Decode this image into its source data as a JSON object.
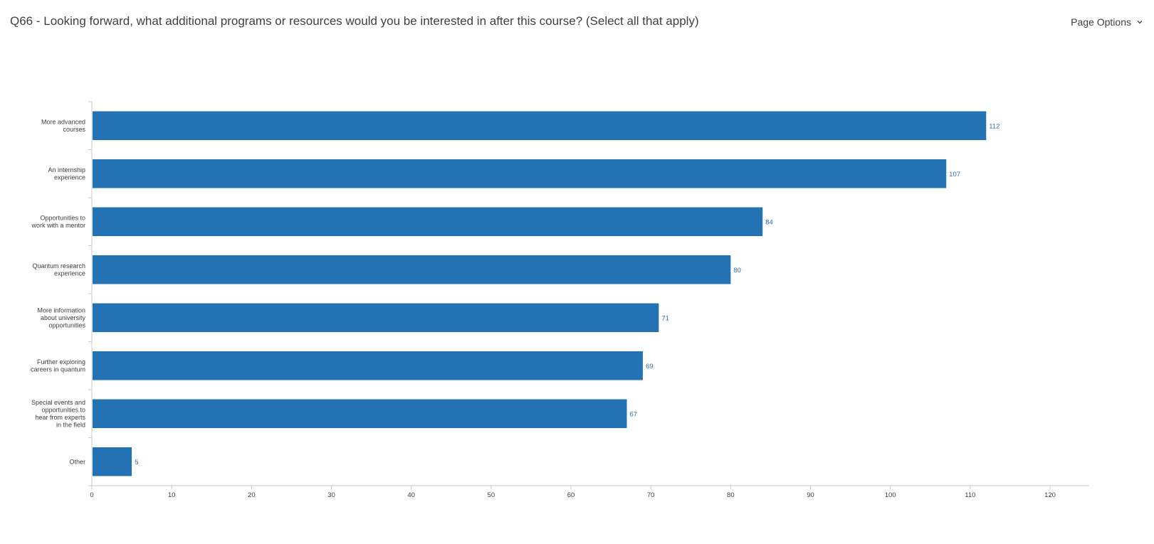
{
  "header": {
    "question_title": "Q66 - Looking forward, what additional programs or resources would you be interested in after this course? (Select all that apply)",
    "page_options_label": "Page Options"
  },
  "icons": {
    "page_options": "chevron-down-icon"
  },
  "colors": {
    "bar": "#2272b4",
    "value_label": "#2f6db5",
    "axis": "#c8c8c8",
    "text": "#404040"
  },
  "chart_data": {
    "type": "bar",
    "orientation": "horizontal",
    "categories": [
      [
        "More advanced",
        "courses"
      ],
      [
        "An internship",
        "experience"
      ],
      [
        "Opportunities to",
        "work with a mentor"
      ],
      [
        "Quantum research",
        "experience"
      ],
      [
        "More information",
        "about university",
        "opportunities"
      ],
      [
        "Further exploring",
        "careers in quantum"
      ],
      [
        "Special events and",
        "opportunities to",
        "hear from experts",
        "in the field"
      ],
      [
        "Other"
      ]
    ],
    "values": [
      112,
      107,
      84,
      80,
      71,
      69,
      67,
      5
    ],
    "xlim": [
      0,
      125
    ],
    "xticks": [
      0,
      10,
      20,
      30,
      40,
      50,
      60,
      70,
      80,
      90,
      100,
      110,
      120
    ],
    "grid": false,
    "data_labels": true
  }
}
